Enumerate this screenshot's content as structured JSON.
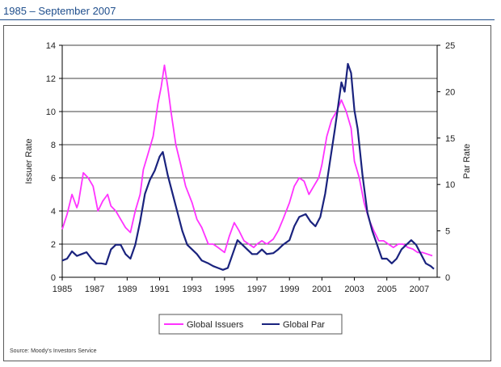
{
  "subtitle": "1985 – September 2007",
  "source": "Source: Moody's Investors Service",
  "chart_data": {
    "type": "line",
    "xlabel": "",
    "ylabel": "Issuer Rate",
    "y2label": "Par Rate",
    "xlim": [
      1985,
      2008.1
    ],
    "ylim": [
      0,
      14
    ],
    "y2lim": [
      0,
      25
    ],
    "grid": "horizontal",
    "legend_position": "bottom-center",
    "x_ticks": [
      "1985",
      "1987",
      "1989",
      "1991",
      "1993",
      "1995",
      "1997",
      "1999",
      "2001",
      "2003",
      "2005",
      "2007"
    ],
    "y_ticks": [
      "0",
      "2",
      "4",
      "6",
      "8",
      "10",
      "12",
      "14"
    ],
    "y2_ticks": [
      "0",
      "5",
      "10",
      "15",
      "20",
      "25"
    ],
    "colors": {
      "issuers": "#ff33ff",
      "par": "#1a237e",
      "axis": "#000000",
      "grid": "#000000"
    },
    "series": [
      {
        "name": "Global Issuers",
        "axis": "left",
        "x": [
          1985.0,
          1985.3,
          1985.6,
          1985.9,
          1986.0,
          1986.3,
          1986.6,
          1986.9,
          1987.2,
          1987.5,
          1987.8,
          1988.0,
          1988.3,
          1988.6,
          1988.9,
          1989.2,
          1989.5,
          1989.8,
          1990.0,
          1990.3,
          1990.6,
          1990.9,
          1991.1,
          1991.3,
          1991.5,
          1991.7,
          1992.0,
          1992.3,
          1992.6,
          1993.0,
          1993.3,
          1993.6,
          1994.0,
          1994.3,
          1994.6,
          1995.0,
          1995.3,
          1995.6,
          1995.9,
          1996.2,
          1996.5,
          1996.8,
          1997.0,
          1997.3,
          1997.6,
          1998.0,
          1998.3,
          1998.6,
          1999.0,
          1999.3,
          1999.6,
          1999.9,
          2000.2,
          2000.5,
          2000.8,
          2001.0,
          2001.3,
          2001.6,
          2001.9,
          2002.2,
          2002.5,
          2002.8,
          2003.0,
          2003.3,
          2003.6,
          2003.9,
          2004.2,
          2004.5,
          2004.8,
          2005.1,
          2005.4,
          2005.7,
          2006.0,
          2006.3,
          2006.6,
          2006.9,
          2007.2,
          2007.5,
          2007.8
        ],
        "values": [
          2.9,
          3.8,
          5.0,
          4.2,
          4.5,
          6.3,
          6.0,
          5.5,
          4.0,
          4.6,
          5.0,
          4.3,
          4.0,
          3.5,
          3.0,
          2.7,
          4.0,
          5.0,
          6.5,
          7.5,
          8.5,
          10.5,
          11.5,
          12.8,
          11.5,
          10.0,
          8.0,
          6.8,
          5.5,
          4.5,
          3.5,
          3.0,
          2.0,
          2.0,
          1.8,
          1.5,
          2.5,
          3.3,
          2.8,
          2.2,
          2.0,
          1.8,
          2.0,
          2.2,
          2.0,
          2.3,
          2.8,
          3.5,
          4.5,
          5.5,
          6.0,
          5.8,
          5.0,
          5.5,
          6.0,
          6.8,
          8.5,
          9.5,
          10.0,
          10.7,
          10.0,
          9.0,
          7.0,
          6.0,
          4.5,
          3.5,
          2.8,
          2.2,
          2.2,
          2.0,
          1.8,
          2.0,
          2.0,
          1.8,
          1.7,
          1.5,
          1.5,
          1.4,
          1.3
        ]
      },
      {
        "name": "Global Par",
        "axis": "right",
        "x": [
          1985.0,
          1985.3,
          1985.6,
          1985.9,
          1986.2,
          1986.5,
          1986.8,
          1987.1,
          1987.4,
          1987.7,
          1988.0,
          1988.3,
          1988.6,
          1988.9,
          1989.2,
          1989.5,
          1989.8,
          1990.1,
          1990.4,
          1990.7,
          1991.0,
          1991.2,
          1991.5,
          1991.8,
          1992.1,
          1992.4,
          1992.7,
          1993.0,
          1993.3,
          1993.6,
          1994.0,
          1994.3,
          1994.6,
          1994.9,
          1995.2,
          1995.5,
          1995.8,
          1996.1,
          1996.4,
          1996.7,
          1997.0,
          1997.3,
          1997.6,
          1998.0,
          1998.3,
          1998.6,
          1999.0,
          1999.3,
          1999.6,
          2000.0,
          2000.3,
          2000.6,
          2000.9,
          2001.2,
          2001.5,
          2001.8,
          2002.0,
          2002.2,
          2002.4,
          2002.6,
          2002.8,
          2003.0,
          2003.2,
          2003.5,
          2003.8,
          2004.1,
          2004.4,
          2004.7,
          2005.0,
          2005.3,
          2005.6,
          2005.9,
          2006.2,
          2006.5,
          2006.8,
          2007.1,
          2007.4,
          2007.7,
          2007.9
        ],
        "values": [
          1.8,
          2.0,
          2.8,
          2.3,
          2.5,
          2.7,
          2.0,
          1.5,
          1.5,
          1.4,
          3.0,
          3.5,
          3.5,
          2.5,
          2.0,
          3.5,
          6.0,
          9.0,
          10.5,
          11.5,
          13.0,
          13.5,
          11.0,
          9.0,
          7.0,
          5.0,
          3.5,
          3.0,
          2.5,
          1.8,
          1.5,
          1.2,
          1.0,
          0.8,
          1.0,
          2.5,
          4.0,
          3.5,
          3.0,
          2.5,
          2.5,
          3.0,
          2.5,
          2.6,
          3.0,
          3.5,
          4.0,
          5.5,
          6.5,
          6.8,
          6.0,
          5.5,
          6.5,
          9.0,
          12.5,
          16.0,
          18.5,
          21.0,
          20.0,
          23.0,
          22.0,
          18.0,
          16.0,
          11.0,
          7.0,
          5.0,
          3.5,
          2.0,
          2.0,
          1.5,
          2.0,
          3.0,
          3.5,
          4.0,
          3.5,
          2.5,
          1.5,
          1.2,
          0.9
        ]
      }
    ]
  }
}
